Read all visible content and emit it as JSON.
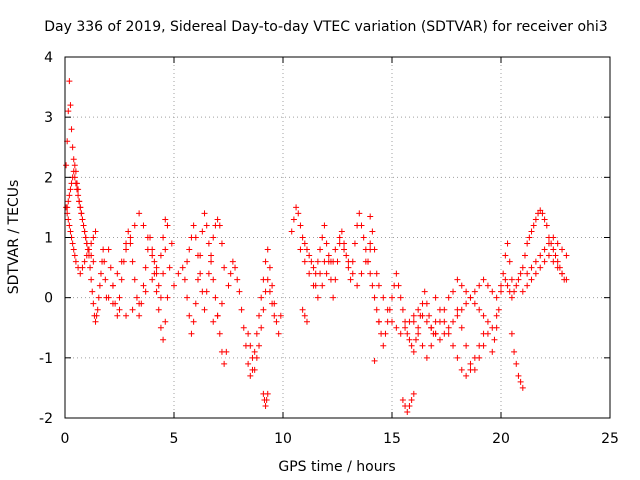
{
  "chart_data": {
    "type": "scatter",
    "title": "Day 336 of 2019, Sidereal Day-to-day VTEC variation (SDTVAR) for receiver ohi3",
    "xlabel": "GPS time / hours",
    "ylabel": "SDTVAR / TECUs",
    "xlim": [
      0,
      25
    ],
    "ylim": [
      -2,
      4
    ],
    "x_ticks": [
      "0",
      "5",
      "10",
      "15",
      "20",
      "25"
    ],
    "y_ticks": [
      "-2",
      "-1",
      "0",
      "1",
      "2",
      "3",
      "4"
    ],
    "x_tick_values": [
      0,
      5,
      10,
      15,
      20,
      25
    ],
    "y_tick_values": [
      -2,
      -1,
      0,
      1,
      2,
      3,
      4
    ],
    "grid": true,
    "marker": "+",
    "color": "#ff0000",
    "series": [
      {
        "name": "SDTVAR",
        "x": [
          0.05,
          0.1,
          0.15,
          0.2,
          0.25,
          0.3,
          0.35,
          0.4,
          0.45,
          0.5,
          0.55,
          0.6,
          0.65,
          0.7,
          0.75,
          0.8,
          0.85,
          0.9,
          0.95,
          1.0,
          1.05,
          1.1,
          1.15,
          1.2,
          1.25,
          1.3,
          1.35,
          1.4,
          1.45,
          1.5,
          1.55,
          1.6,
          1.65,
          1.7,
          1.75,
          1.8,
          1.85,
          1.9,
          0.1,
          0.15,
          0.2,
          0.25,
          0.3,
          0.35,
          0.4,
          0.45,
          0.5,
          0.55,
          0.6,
          0.65,
          0.7,
          0.75,
          0.8,
          0.85,
          0.9,
          0.95,
          1.0,
          1.1,
          1.2,
          1.3,
          0.05,
          0.1,
          0.15,
          0.2,
          0.25,
          0.3,
          0.35,
          0.4,
          0.45,
          0.5,
          0.6,
          0.7,
          0.8,
          0.9,
          1.0,
          1.1,
          1.2,
          1.3,
          1.4,
          2.0,
          2.1,
          2.2,
          2.3,
          2.4,
          2.5,
          2.6,
          2.7,
          2.8,
          2.9,
          3.0,
          3.1,
          3.2,
          3.3,
          3.4,
          3.5,
          3.6,
          3.7,
          3.8,
          3.9,
          4.0,
          4.1,
          4.2,
          4.3,
          4.4,
          4.5,
          4.6,
          4.7,
          4.8,
          4.9,
          2.0,
          2.2,
          2.4,
          2.6,
          2.8,
          3.0,
          3.2,
          3.4,
          3.6,
          3.8,
          4.0,
          4.1,
          4.2,
          4.3,
          4.4,
          4.5,
          4.6,
          4.7,
          2.2,
          2.5,
          2.8,
          3.1,
          3.4,
          3.7,
          4.0,
          4.2,
          4.4,
          4.5,
          4.6,
          5.0,
          5.2,
          5.4,
          5.5,
          5.6,
          5.7,
          5.8,
          5.9,
          6.0,
          6.1,
          6.2,
          6.3,
          6.4,
          6.5,
          6.6,
          6.7,
          6.8,
          6.9,
          7.0,
          7.1,
          7.2,
          7.3,
          7.4,
          5.6,
          5.7,
          5.8,
          5.9,
          6.0,
          6.1,
          6.2,
          6.3,
          6.4,
          6.5,
          6.6,
          6.7,
          6.8,
          6.9,
          7.0,
          7.1,
          7.2,
          7.3,
          6.8,
          7.0,
          7.2,
          7.5,
          7.6,
          7.7,
          7.8,
          7.9,
          8.0,
          8.1,
          8.2,
          8.3,
          8.4,
          8.5,
          8.6,
          8.7,
          8.8,
          8.9,
          9.0,
          9.1,
          9.2,
          9.3,
          9.4,
          9.5,
          9.6,
          9.7,
          9.8,
          9.9,
          8.4,
          8.5,
          8.6,
          8.7,
          8.8,
          8.9,
          9.0,
          9.1,
          9.2,
          9.3,
          9.4,
          9.5,
          9.6,
          9.1,
          9.15,
          9.2,
          9.25,
          9.3,
          10.4,
          10.5,
          10.6,
          10.7,
          10.8,
          10.9,
          11.0,
          11.1,
          11.2,
          11.3,
          11.4,
          11.5,
          11.6,
          11.7,
          11.8,
          11.9,
          12.0,
          12.1,
          12.2,
          12.3,
          12.4,
          12.5,
          12.6,
          12.7,
          12.8,
          12.9,
          13.0,
          13.1,
          13.2,
          13.3,
          13.4,
          13.5,
          13.6,
          13.7,
          13.8,
          13.9,
          14.0,
          14.1,
          14.2,
          10.8,
          11.0,
          11.2,
          11.4,
          11.6,
          11.8,
          12.0,
          12.2,
          12.4,
          12.6,
          12.8,
          13.0,
          13.2,
          13.4,
          13.6,
          13.8,
          14.0,
          10.9,
          11.0,
          11.1,
          11.5,
          11.7,
          11.9,
          12.1,
          12.3,
          13.9,
          14.0,
          14.1,
          14.2,
          14.3,
          14.4,
          14.5,
          14.6,
          14.7,
          14.8,
          14.9,
          15.0,
          15.1,
          15.2,
          15.3,
          15.4,
          15.5,
          15.6,
          15.7,
          15.8,
          15.9,
          16.0,
          16.1,
          16.2,
          16.3,
          16.4,
          16.5,
          16.6,
          16.7,
          16.8,
          16.9,
          17.0,
          14.3,
          14.4,
          14.6,
          14.8,
          15.0,
          15.2,
          15.4,
          15.6,
          15.8,
          16.0,
          16.2,
          16.4,
          16.6,
          16.8,
          17.0,
          17.2,
          17.4,
          17.6,
          17.8,
          18.0,
          18.2,
          18.4,
          18.6,
          18.8,
          19.0,
          19.2,
          19.4,
          19.6,
          19.8,
          20.0,
          15.5,
          15.6,
          15.7,
          15.8,
          15.9,
          16.0,
          16.0,
          16.2,
          16.4,
          16.6,
          16.8,
          17.0,
          17.2,
          17.4,
          17.6,
          17.8,
          18.0,
          18.2,
          18.4,
          18.6,
          18.8,
          19.0,
          19.2,
          19.4,
          17.0,
          17.2,
          17.4,
          17.6,
          17.8,
          18.0,
          18.2,
          18.4,
          18.6,
          18.8,
          19.0,
          19.2,
          18.0,
          18.2,
          18.4,
          18.6,
          18.8,
          19.0,
          19.2,
          19.4,
          19.6,
          19.8,
          14.0,
          14.2,
          14.4,
          19.6,
          19.7,
          19.8,
          19.9,
          20.0,
          20.1,
          20.2,
          20.3,
          20.4,
          20.5,
          20.2,
          20.3,
          20.4,
          20.5,
          20.6,
          20.7,
          20.8,
          20.9,
          21.0,
          21.1,
          21.2,
          21.3,
          21.4,
          21.5,
          21.6,
          21.7,
          21.8,
          21.9,
          22.0,
          22.1,
          22.2,
          22.3,
          22.4,
          22.5,
          22.6,
          22.7,
          22.8,
          22.9,
          21.0,
          21.2,
          21.4,
          21.6,
          21.8,
          22.0,
          22.2,
          22.4,
          22.6,
          22.8,
          23.0,
          21.2,
          21.4,
          21.6,
          21.8,
          22.0,
          22.2,
          22.4,
          22.6,
          22.8,
          23.0,
          20.5,
          20.6,
          20.7,
          20.8,
          20.9,
          21.0
        ],
        "y": [
          2.2,
          2.6,
          3.1,
          3.6,
          3.2,
          2.8,
          2.5,
          2.3,
          2.2,
          2.1,
          1.9,
          1.8,
          1.6,
          1.5,
          1.4,
          1.3,
          1.2,
          1.1,
          1.0,
          0.9,
          0.8,
          0.7,
          0.5,
          0.3,
          0.1,
          -0.1,
          -0.3,
          -0.4,
          -0.3,
          -0.2,
          0.0,
          0.2,
          0.4,
          0.6,
          0.8,
          0.6,
          0.3,
          0.0,
          1.5,
          1.6,
          1.7,
          1.8,
          1.9,
          2.0,
          2.1,
          2.0,
          1.9,
          1.8,
          1.7,
          1.6,
          1.5,
          1.4,
          1.3,
          1.2,
          1.1,
          1.0,
          0.9,
          0.8,
          0.7,
          0.6,
          1.5,
          1.4,
          1.3,
          1.2,
          1.1,
          1.0,
          0.9,
          0.8,
          0.7,
          0.6,
          0.5,
          0.4,
          0.5,
          0.6,
          0.7,
          0.8,
          0.9,
          1.0,
          1.1,
          0.8,
          0.5,
          0.2,
          -0.1,
          -0.3,
          0.0,
          0.3,
          0.6,
          0.9,
          1.1,
          0.9,
          0.6,
          0.3,
          0.0,
          -0.3,
          -0.1,
          0.2,
          0.5,
          0.8,
          1.0,
          0.7,
          0.4,
          0.1,
          -0.2,
          -0.5,
          -0.7,
          -0.4,
          0.0,
          0.5,
          0.9,
          0.0,
          0.2,
          0.4,
          0.6,
          0.8,
          1.0,
          1.2,
          1.4,
          1.2,
          1.0,
          0.8,
          0.6,
          0.4,
          0.2,
          0.0,
          0.4,
          0.8,
          1.2,
          -0.1,
          -0.2,
          -0.3,
          -0.2,
          -0.1,
          0.1,
          0.3,
          0.5,
          0.7,
          1.0,
          1.3,
          0.2,
          0.4,
          0.5,
          0.3,
          0.0,
          -0.3,
          -0.6,
          -0.4,
          -0.1,
          0.3,
          0.7,
          1.1,
          1.4,
          1.2,
          0.9,
          0.6,
          0.3,
          0.0,
          -0.3,
          -0.6,
          -0.9,
          -1.1,
          -0.9,
          0.6,
          0.8,
          1.0,
          1.2,
          1.0,
          0.7,
          0.4,
          0.1,
          -0.2,
          0.1,
          0.4,
          0.7,
          1.0,
          1.2,
          1.3,
          1.2,
          0.9,
          0.5,
          -0.4,
          -0.3,
          -0.1,
          0.2,
          0.4,
          0.6,
          0.5,
          0.3,
          0.1,
          -0.2,
          -0.5,
          -0.8,
          -1.1,
          -1.3,
          -1.2,
          -0.9,
          -0.6,
          -0.3,
          0.0,
          0.3,
          0.6,
          0.8,
          0.5,
          0.2,
          -0.1,
          -0.4,
          -0.6,
          -0.3,
          -0.6,
          -0.8,
          -1.0,
          -1.2,
          -1.0,
          -0.8,
          -0.5,
          -0.2,
          0.1,
          0.3,
          0.1,
          -0.1,
          -0.3,
          -1.6,
          -1.7,
          -1.8,
          -1.7,
          -1.6,
          1.1,
          1.3,
          1.5,
          1.4,
          1.2,
          1.0,
          0.9,
          0.8,
          0.7,
          0.6,
          0.5,
          0.4,
          0.6,
          0.8,
          1.0,
          1.2,
          0.9,
          0.6,
          0.3,
          0.0,
          0.3,
          0.6,
          0.9,
          1.1,
          0.9,
          0.7,
          0.5,
          0.3,
          0.6,
          0.9,
          1.2,
          1.4,
          1.2,
          1.0,
          0.8,
          0.6,
          0.9,
          1.1,
          0.8,
          0.8,
          0.6,
          0.4,
          0.2,
          0.0,
          0.2,
          0.4,
          0.6,
          0.8,
          1.0,
          0.8,
          0.6,
          0.4,
          0.2,
          0.4,
          0.6,
          0.8,
          -0.2,
          -0.3,
          -0.4,
          0.2,
          0.4,
          0.6,
          0.7,
          0.6,
          0.6,
          0.4,
          0.2,
          0.0,
          -0.2,
          -0.4,
          -0.6,
          -0.8,
          -0.6,
          -0.4,
          -0.2,
          0.0,
          0.2,
          0.4,
          0.2,
          0.0,
          -0.2,
          -0.4,
          -0.6,
          -0.7,
          -0.8,
          -0.9,
          -0.7,
          -0.5,
          -0.3,
          -0.1,
          0.1,
          -0.1,
          -0.3,
          -0.5,
          -0.6,
          -0.4,
          0.4,
          0.2,
          0.0,
          -0.2,
          -0.4,
          -0.5,
          -0.6,
          -0.5,
          -0.4,
          -0.3,
          -0.2,
          -0.3,
          -0.4,
          -0.5,
          -0.6,
          -0.7,
          -0.6,
          -0.5,
          -0.4,
          -0.3,
          -0.2,
          -0.1,
          0.0,
          0.1,
          0.2,
          0.3,
          0.2,
          0.1,
          0.0,
          0.2,
          -1.7,
          -1.8,
          -1.9,
          -1.8,
          -1.7,
          -1.6,
          -0.4,
          -0.6,
          -0.8,
          -1.0,
          -0.8,
          -0.6,
          -0.4,
          -0.2,
          0.0,
          0.1,
          -0.2,
          -0.5,
          -0.8,
          -1.1,
          -1.2,
          -1.0,
          -0.8,
          -0.6,
          0.0,
          -0.2,
          -0.4,
          -0.6,
          -0.8,
          -1.0,
          -1.2,
          -1.3,
          -1.2,
          -1.0,
          -0.8,
          -0.6,
          0.3,
          0.2,
          0.1,
          0.0,
          -0.1,
          -0.2,
          -0.3,
          -0.4,
          -0.5,
          -0.3,
          1.35,
          -1.05,
          -0.4,
          -0.9,
          -0.7,
          -0.5,
          -0.2,
          0.1,
          0.4,
          0.7,
          0.9,
          0.6,
          0.3,
          0.3,
          0.2,
          0.1,
          0.0,
          0.1,
          0.2,
          0.3,
          0.4,
          0.5,
          0.7,
          0.9,
          1.0,
          1.1,
          1.2,
          1.3,
          1.4,
          1.45,
          1.4,
          1.3,
          1.2,
          1.0,
          0.9,
          0.8,
          0.7,
          0.6,
          0.5,
          0.4,
          0.3,
          0.1,
          0.2,
          0.3,
          0.4,
          0.5,
          0.6,
          0.7,
          0.6,
          0.5,
          0.4,
          0.3,
          0.4,
          0.5,
          0.6,
          0.7,
          0.8,
          0.9,
          1.0,
          0.9,
          0.8,
          0.7,
          -0.6,
          -0.9,
          -1.1,
          -1.3,
          -1.4,
          -1.5
        ]
      }
    ]
  }
}
